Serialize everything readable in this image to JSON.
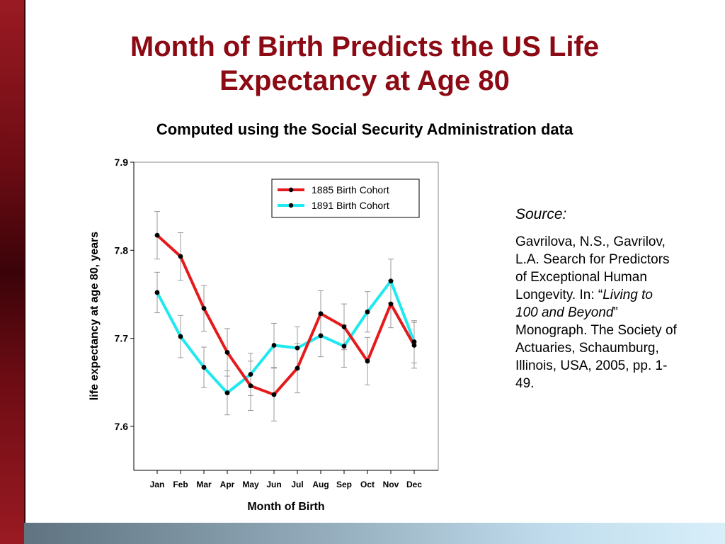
{
  "slide": {
    "title_line1": "Month of Birth Predicts the US Life",
    "title_line2": "Expectancy at Age 80",
    "subtitle": "Computed using the Social Security Administration data",
    "accent_color": "#8b0a14"
  },
  "source": {
    "heading": "Source:",
    "text_part1": "Gavrilova, N.S., Gavrilov, L.A. Search for Predictors of Exceptional Human Longevity. In: “",
    "text_italic": "Living to 100 and Beyond",
    "text_part2": "” Monograph. The Society of Actuaries, Schaumburg, Illinois, USA, 2005, pp. 1-49."
  },
  "chart_data": {
    "type": "line",
    "title": "",
    "xlabel": "Month of Birth",
    "ylabel": "life expectancy at age 80, years",
    "categories": [
      "Jan",
      "Feb",
      "Mar",
      "Apr",
      "May",
      "Jun",
      "Jul",
      "Aug",
      "Sep",
      "Oct",
      "Nov",
      "Dec"
    ],
    "ylim": [
      7.55,
      7.9
    ],
    "yticks": [
      "7.6",
      "7.7",
      "7.8",
      "7.9"
    ],
    "ytick_values": [
      7.6,
      7.7,
      7.8,
      7.9
    ],
    "grid": false,
    "legend_position": "top-right",
    "error_bars": true,
    "series": [
      {
        "name": "1885 Birth Cohort",
        "color": "#e41a1c",
        "values": [
          7.817,
          7.793,
          7.734,
          7.684,
          7.646,
          7.636,
          7.666,
          7.728,
          7.713,
          7.674,
          7.739,
          7.692
        ],
        "errors": [
          0.027,
          0.027,
          0.026,
          0.027,
          0.028,
          0.03,
          0.028,
          0.026,
          0.026,
          0.027,
          0.027,
          0.026
        ]
      },
      {
        "name": "1891 Birth Cohort",
        "color": "#1ee8f0",
        "values": [
          7.752,
          7.702,
          7.667,
          7.638,
          7.659,
          7.692,
          7.689,
          7.703,
          7.691,
          7.73,
          7.765,
          7.696
        ],
        "errors": [
          0.023,
          0.024,
          0.023,
          0.025,
          0.024,
          0.025,
          0.024,
          0.024,
          0.024,
          0.023,
          0.025,
          0.024
        ]
      }
    ]
  }
}
